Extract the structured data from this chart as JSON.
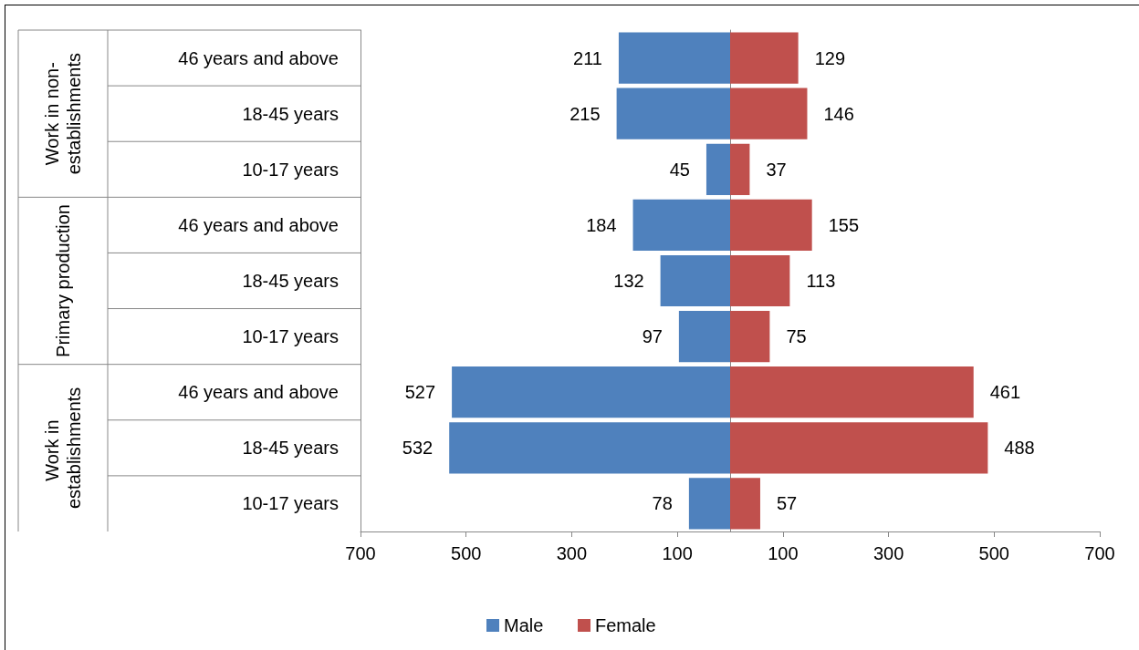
{
  "chart_data": [
    {
      "type": "bar",
      "orientation": "horizontal",
      "categories": [
        "46 years and above",
        "18-45 years",
        "10-17 years",
        "46 years and above",
        "18-45 years",
        "10-17 years",
        "46 years and above",
        "18-45 years",
        "10-17 years"
      ],
      "annotations": [
        "Work in non-establishments",
        "Primary production",
        "Work in establishments"
      ],
      "series": [
        {
          "name": "Male",
          "color": "#4f81bd",
          "values": [
            211,
            215,
            45,
            184,
            132,
            97,
            527,
            532,
            78
          ]
        }
      ],
      "data_labels": true,
      "xlim": [
        700,
        0
      ],
      "xticks": [
        700,
        500,
        300,
        100
      ],
      "grid": false,
      "legend": "bottom"
    },
    {
      "type": "bar",
      "orientation": "horizontal",
      "categories": [
        "46 years and above",
        "18-45 years",
        "10-17 years",
        "46 years and above",
        "18-45 years",
        "10-17 years",
        "46 years and above",
        "18-45 years",
        "10-17 years"
      ],
      "series": [
        {
          "name": "Female",
          "color": "#c0504d",
          "values": [
            129,
            146,
            37,
            155,
            113,
            75,
            461,
            488,
            57
          ]
        }
      ],
      "data_labels": true,
      "xlim": [
        0,
        700
      ],
      "xticks": [
        100,
        300,
        500,
        700
      ],
      "tick_labels": "x",
      "grid": false,
      "legend": "bottom"
    }
  ]
}
